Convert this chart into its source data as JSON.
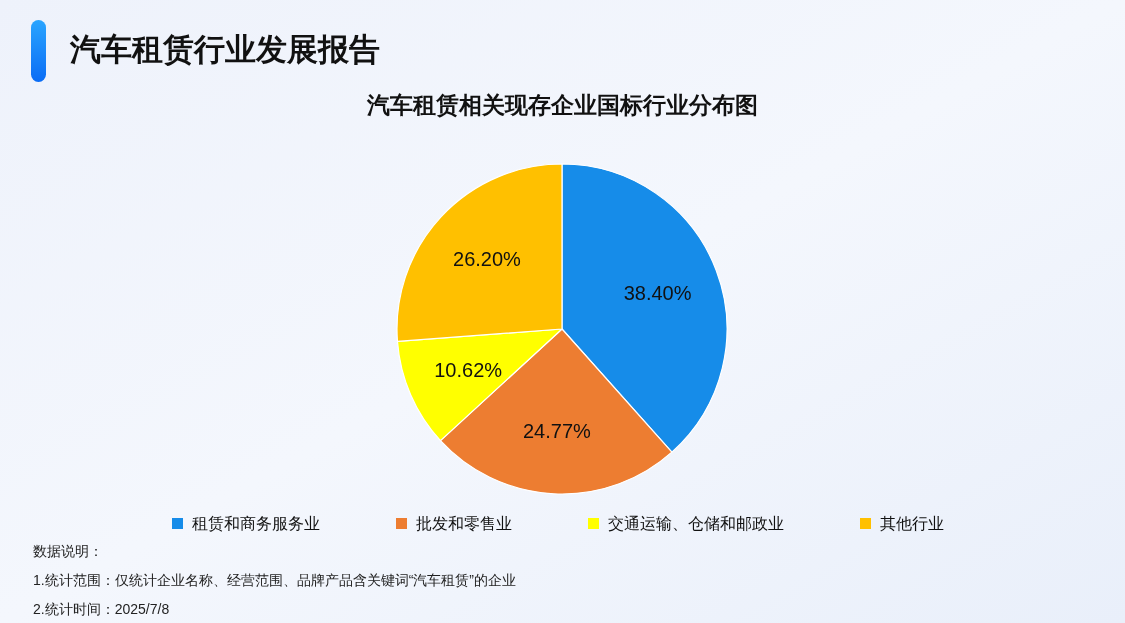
{
  "chart_data": {
    "type": "pie",
    "title": "汽车租赁行业发展报告",
    "subtitle": "汽车租赁相关现存企业国标行业分布图",
    "categories": [
      "租赁和商务服务业",
      "批发和零售业",
      "交通运输、仓储和邮政业",
      "其他行业"
    ],
    "values": [
      38.4,
      24.77,
      10.62,
      26.2
    ],
    "colors": [
      "#168ce9",
      "#ed7d31",
      "#ffff00",
      "#ffc000"
    ],
    "value_labels": [
      "38.40%",
      "24.77%",
      "10.62%",
      "26.20%"
    ],
    "legend": "bottom",
    "annotations": [
      "数据说明：",
      "1.统计范围：仅统计企业名称、经营范围、品牌产品含关键词“汽车租赁”的企业",
      "2.统计时间：2025/7/8"
    ]
  }
}
